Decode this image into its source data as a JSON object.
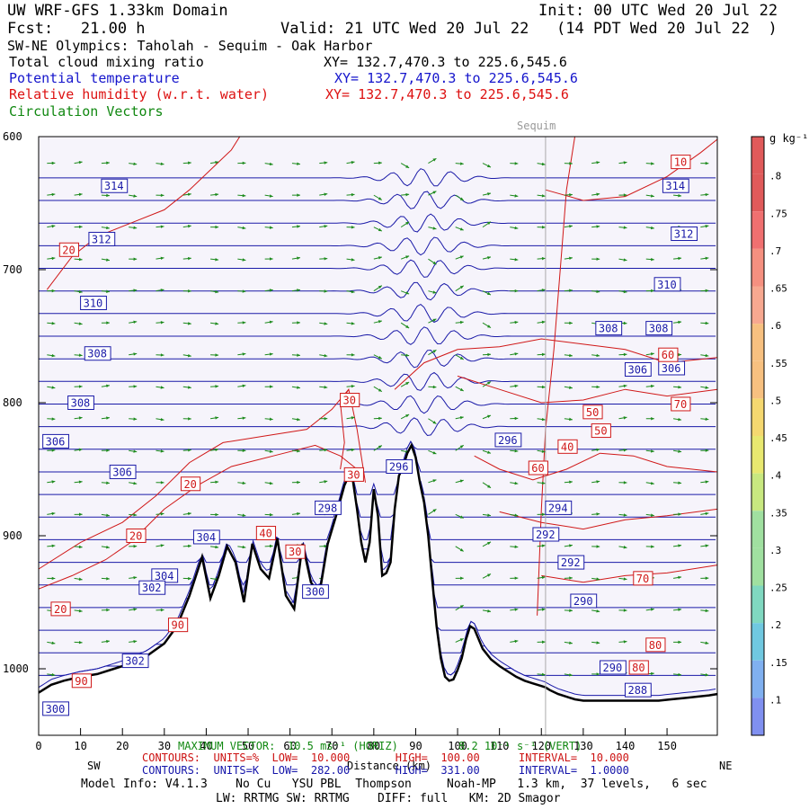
{
  "header": {
    "model_domain": "UW WRF-GFS 1.33km Domain",
    "init": "Init: 00 UTC Wed 20 Jul 22",
    "fcst": "Fcst:   21.00 h",
    "valid": "Valid: 21 UTC Wed 20 Jul 22   (14 PDT Wed 20 Jul 22  )",
    "cross_section": "SW-NE Olympics: Taholah - Sequim - Oak Harbor",
    "field1": "Total cloud mixing ratio",
    "field1_xy": "XY= 132.7,470.3 to 225.6,545.6",
    "field2": "Potential temperature",
    "field2_xy": "XY= 132.7,470.3 to 225.6,545.6",
    "field3": "Relative humidity (w.r.t. water)",
    "field3_xy": "XY= 132.7,470.3 to 225.6,545.6",
    "field4": "Circulation Vectors"
  },
  "colors": {
    "theta": "#1a1aa8",
    "rh": "#d01818",
    "vectors": "#1c8a1c",
    "terrain": "#000000",
    "plot_bg": "#f6f4fb",
    "header_blue": "#1515cc",
    "header_red": "#dd1111",
    "header_green": "#118811"
  },
  "chart_data": {
    "type": "cross-section",
    "xlabel": "Distance (km)",
    "ylabel": "Pressure (hPa)",
    "xlim": [
      0,
      162
    ],
    "ylim": [
      1050,
      600
    ],
    "x_ticks": [
      "0",
      "10",
      "20",
      "30",
      "40",
      "50",
      "60",
      "70",
      "80",
      "90",
      "100",
      "110",
      "120",
      "130",
      "140",
      "150"
    ],
    "y_ticks": [
      "600",
      "700",
      "800",
      "900",
      "1000"
    ],
    "left_end": "SW",
    "right_end": "NE",
    "location_marker": {
      "label": "Sequim",
      "x": 121
    },
    "terrain": {
      "x": [
        0,
        3,
        6,
        10,
        14,
        18,
        22,
        26,
        30,
        33,
        36,
        39,
        41,
        43,
        45,
        47,
        49,
        51,
        53,
        55,
        57,
        59,
        61,
        63,
        65,
        67,
        69,
        71,
        73,
        74,
        75,
        76,
        77,
        78,
        79,
        80,
        81,
        82,
        83,
        84,
        85,
        86,
        87,
        88,
        89,
        90,
        91,
        92,
        93,
        94,
        95,
        96,
        97,
        98,
        99,
        100,
        101,
        102,
        103,
        104,
        106,
        108,
        110,
        112,
        114,
        116,
        118,
        120,
        121,
        122,
        124,
        126,
        128,
        130,
        133,
        136,
        139,
        142,
        145,
        148,
        151,
        154,
        157,
        160,
        162
      ],
      "p": [
        1018,
        1012,
        1009,
        1006,
        1004,
        1000,
        996,
        990,
        981,
        968,
        945,
        916,
        947,
        930,
        908,
        920,
        950,
        906,
        925,
        932,
        902,
        945,
        955,
        906,
        935,
        944,
        906,
        885,
        862,
        855,
        858,
        880,
        905,
        920,
        905,
        865,
        885,
        930,
        928,
        920,
        880,
        855,
        848,
        838,
        832,
        841,
        860,
        875,
        900,
        935,
        968,
        992,
        1006,
        1009,
        1008,
        1001,
        992,
        978,
        968,
        970,
        985,
        993,
        998,
        1002,
        1006,
        1009,
        1011,
        1013,
        1014,
        1016,
        1019,
        1021,
        1023,
        1024,
        1024,
        1024,
        1024,
        1024,
        1024,
        1024,
        1023,
        1022,
        1021,
        1020,
        1019
      ]
    },
    "theta_contours": {
      "units": "K",
      "low": "282.00",
      "high": "331.00",
      "interval": "1.0000",
      "labels": [
        "314",
        "312",
        "310",
        "308",
        "306",
        "304",
        "302",
        "300",
        "298",
        "296",
        "294",
        "292",
        "290",
        "288"
      ],
      "extra_labels": [
        "314",
        "312",
        "310",
        "308",
        "308",
        "306",
        "306",
        "304",
        "304",
        "302",
        "302",
        "300",
        "300",
        "298",
        "296",
        "296",
        "294",
        "292",
        "292",
        "290",
        "290",
        "288"
      ]
    },
    "rh_contours": {
      "units": "%",
      "low": "10.000",
      "high": "100.00",
      "interval": "10.000",
      "labels": [
        "10",
        "20",
        "30",
        "40",
        "50",
        "60",
        "70",
        "80",
        "90"
      ],
      "extra_labels": [
        "20",
        "20",
        "20",
        "20",
        "30",
        "30",
        "30",
        "40",
        "40",
        "50",
        "50",
        "60",
        "60",
        "70",
        "70",
        "80",
        "90",
        "90",
        "80"
      ]
    },
    "colorbar": {
      "units": "g kg⁻¹",
      "ticks": [
        ".1",
        ".15",
        ".2",
        ".25",
        ".3",
        ".35",
        ".4",
        ".45",
        ".5",
        ".55",
        ".6",
        ".65",
        ".7",
        ".75",
        ".8"
      ]
    },
    "max_vector": {
      "label": "MAXIMUM VECTOR:",
      "horiz": "10.5 ms⁻¹ (HORIZ)",
      "vert": "8.2 10⁻¹ s⁻¹ (VERT)"
    }
  },
  "legend_lines": {
    "rh_contours": "CONTOURS:  UNITS=%  LOW=  10.000       HIGH=  100.00      INTERVAL=  10.000",
    "theta_contours": "CONTOURS:  UNITS=K  LOW=  282.00       HIGH=  331.00      INTERVAL=  1.0000"
  },
  "footer": {
    "model_info": "Model Info: V4.1.3    No Cu   YSU PBL  Thompson     Noah-MP   1.3 km,  37 levels,   6 sec",
    "physics": "LW: RRTMG SW: RRTMG    DIFF: full   KM: 2D Smagor"
  }
}
